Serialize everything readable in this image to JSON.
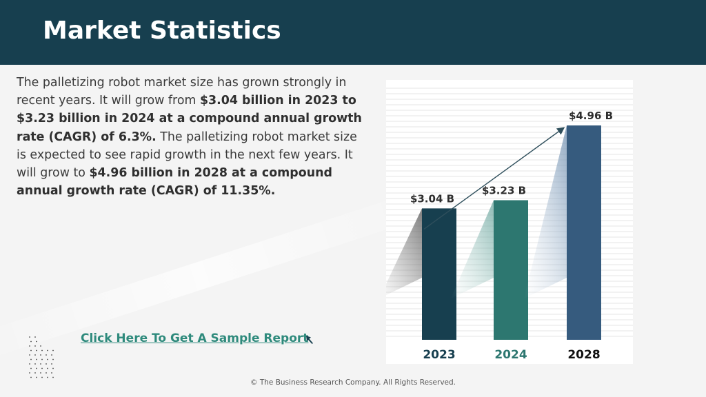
{
  "header": {
    "title": "Market Statistics"
  },
  "description": {
    "segments": [
      {
        "text": "The palletizing robot market size has grown strongly in recent years. It will grow from ",
        "bold": false
      },
      {
        "text": "$3.04 billion in 2023 to $3.23 billion in 2024 at a compound annual growth rate (CAGR) of 6.3%.",
        "bold": true
      },
      {
        "text": " The palletizing robot market size is expected to see rapid growth in the next few years. It will grow to ",
        "bold": false
      },
      {
        "text": "$4.96 billion in 2028 at a compound annual growth rate (CAGR) of 11.35%.",
        "bold": true
      }
    ]
  },
  "cta": {
    "label": "Click Here To Get A Sample Report"
  },
  "footer": {
    "text": "© The Business Research Company. All Rights Reserved."
  },
  "icons": {
    "cta": "cursor-arrow-icon",
    "decor": "dot-grid-icon"
  },
  "chart_data": {
    "type": "bar",
    "categories": [
      "2023",
      "2024",
      "2028"
    ],
    "values": [
      3.04,
      3.23,
      4.96
    ],
    "data_labels": [
      "$3.04  B",
      "$3.23  B",
      "$4.96  B"
    ],
    "bar_colors": [
      "#173f4f",
      "#2d7770",
      "#365b7e"
    ],
    "category_label_colors": [
      "#173f4f",
      "#2d7770",
      "#111111"
    ],
    "trend_arrow": true,
    "grid": true
  }
}
